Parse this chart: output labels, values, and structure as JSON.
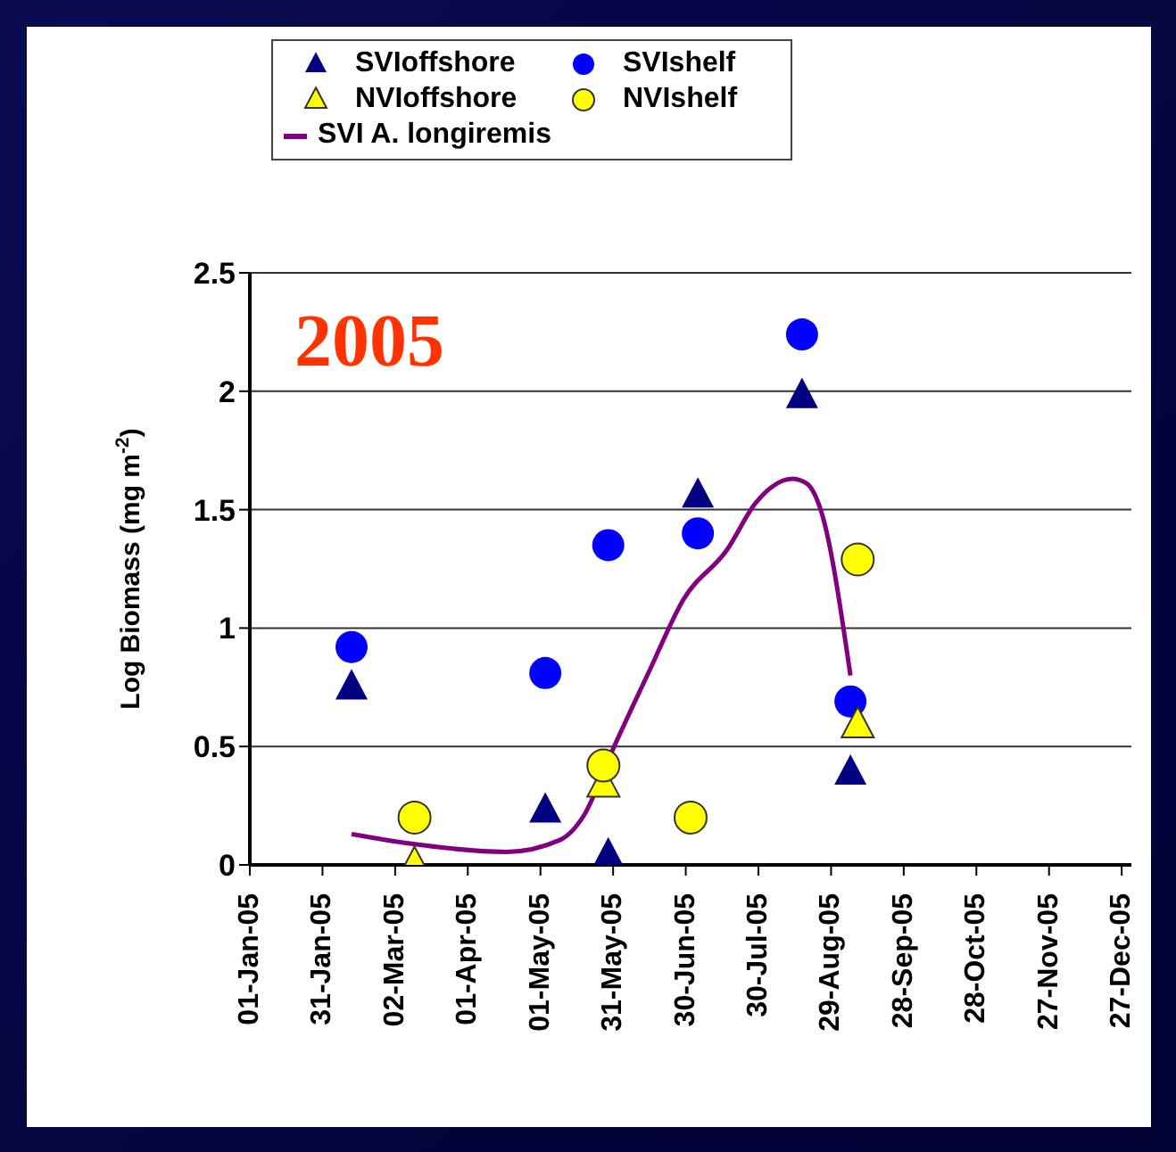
{
  "chart_data": {
    "type": "scatter",
    "ylabel": "Log Biomass (mg m$^{-2}$)",
    "annotations": [
      "2005"
    ],
    "xlim": [
      "2005-01-01",
      "2005-12-31"
    ],
    "xticks": [
      {
        "value": "2005-01-01",
        "label": "01-Jan-05"
      },
      {
        "value": "2005-01-31",
        "label": "31-Jan-05"
      },
      {
        "value": "2005-03-02",
        "label": "02-Mar-05"
      },
      {
        "value": "2005-04-01",
        "label": "01-Apr-05"
      },
      {
        "value": "2005-05-01",
        "label": "01-May-05"
      },
      {
        "value": "2005-05-31",
        "label": "31-May-05"
      },
      {
        "value": "2005-06-30",
        "label": "30-Jun-05"
      },
      {
        "value": "2005-07-30",
        "label": "30-Jul-05"
      },
      {
        "value": "2005-08-29",
        "label": "29-Aug-05"
      },
      {
        "value": "2005-09-28",
        "label": "28-Sep-05"
      },
      {
        "value": "2005-10-28",
        "label": "28-Oct-05"
      },
      {
        "value": "2005-11-27",
        "label": "27-Nov-05"
      },
      {
        "value": "2005-12-27",
        "label": "27-Dec-05"
      }
    ],
    "ylim": [
      0,
      2.5
    ],
    "yticks": [
      0,
      0.5,
      1,
      1.5,
      2,
      2.5
    ],
    "grid": "y",
    "legend": "top",
    "series": [
      {
        "name": "SVIoffshore",
        "marker": "triangle",
        "color": "#000080",
        "x": [
          "2005-02-12",
          "2005-05-03",
          "2005-05-29",
          "2005-07-05",
          "2005-08-17",
          "2005-09-06"
        ],
        "values": [
          0.75,
          0.23,
          0.04,
          1.56,
          1.98,
          0.39
        ]
      },
      {
        "name": "SVIshelf",
        "marker": "circle",
        "color": "#0000ff",
        "x": [
          "2005-02-12",
          "2005-05-03",
          "2005-05-29",
          "2005-07-05",
          "2005-08-17",
          "2005-09-06"
        ],
        "values": [
          0.92,
          0.81,
          1.35,
          1.4,
          2.24,
          0.69
        ]
      },
      {
        "name": "NVIoffshore",
        "marker": "triangle",
        "color": "#ffff00",
        "x": [
          "2005-03-10",
          "2005-05-27",
          "2005-09-09"
        ],
        "values": [
          0,
          0.34,
          0.59
        ]
      },
      {
        "name": "NVIshelf",
        "marker": "circle",
        "color": "#ffff00",
        "x": [
          "2005-03-10",
          "2005-05-27",
          "2005-07-02",
          "2005-09-09"
        ],
        "values": [
          0.2,
          0.42,
          0.2,
          1.29
        ]
      },
      {
        "name": "SVI A. longiremis",
        "type": "line",
        "marker": "none",
        "line_style": "solid",
        "color": "#800080",
        "x": [
          "2005-02-12",
          "2005-03-08",
          "2005-04-17",
          "2005-05-09",
          "2005-05-19",
          "2005-05-31",
          "2005-06-15",
          "2005-06-29",
          "2005-07-17",
          "2005-07-29",
          "2005-08-13",
          "2005-08-19",
          "2005-08-25",
          "2005-09-06"
        ],
        "values": [
          0.13,
          0.09,
          0.055,
          0.105,
          0.21,
          0.49,
          0.82,
          1.12,
          1.33,
          1.53,
          1.63,
          1.61,
          1.49,
          0.8
        ]
      }
    ]
  }
}
